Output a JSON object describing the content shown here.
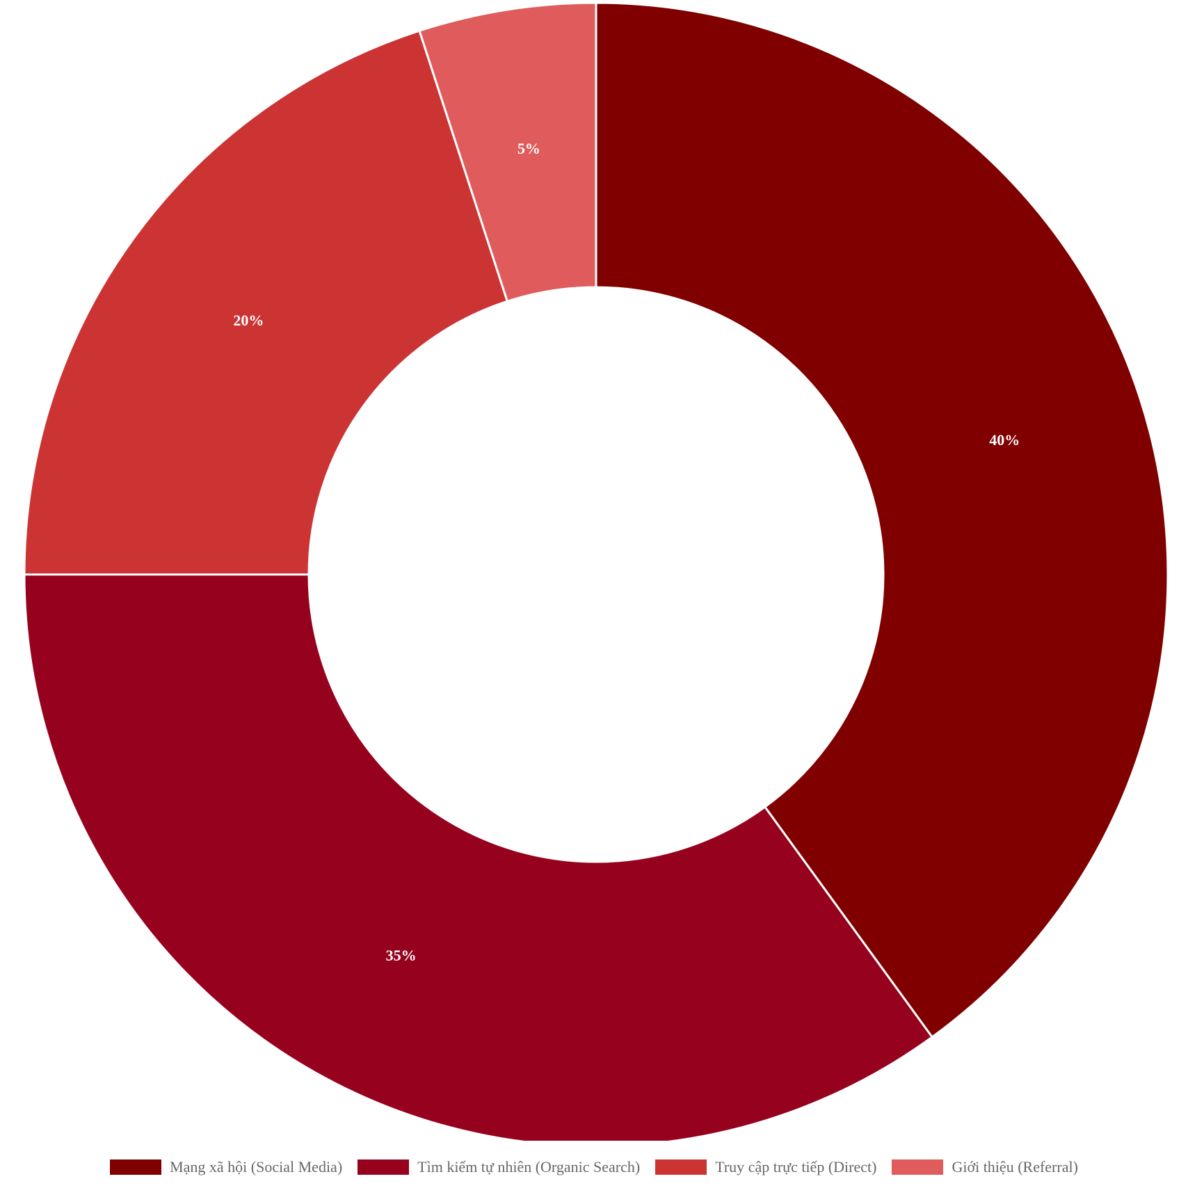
{
  "chart_data": {
    "type": "pie",
    "variant": "doughnut",
    "categories": [
      "Mạng xã hội (Social Media)",
      "Tìm kiếm tự nhiên (Organic Search)",
      "Truy cập trực tiếp (Direct)",
      "Giới thiệu (Referral)"
    ],
    "values": [
      40,
      35,
      20,
      5
    ],
    "value_labels": [
      "40%",
      "35%",
      "20%",
      "5%"
    ],
    "colors": [
      "#800000",
      "#96021E",
      "#CC3333",
      "#E05C5C"
    ],
    "legend_position": "bottom",
    "start_angle": "top, clockwise",
    "title": "",
    "xlabel": "",
    "ylabel": ""
  },
  "legend": {
    "items": [
      {
        "label": "Mạng xã hội (Social Media)",
        "color": "#800000"
      },
      {
        "label": "Tìm kiếm tự nhiên (Organic Search)",
        "color": "#96021E"
      },
      {
        "label": "Truy cập trực tiếp (Direct)",
        "color": "#CC3333"
      },
      {
        "label": "Giới thiệu (Referral)",
        "color": "#E05C5C"
      }
    ]
  }
}
